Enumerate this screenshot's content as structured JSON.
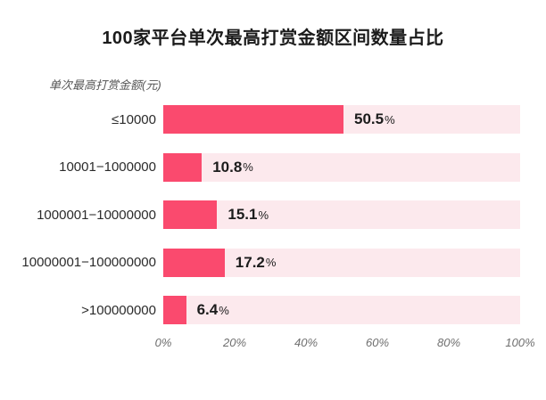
{
  "title": "100家平台单次最高打赏金额区间数量占比",
  "axis_note": "单次最高打赏金额(元)",
  "colors": {
    "bar": "#fa4a6e",
    "track": "#fce9ed",
    "title_text": "#1b1b1b",
    "category_text": "#2b2b2b",
    "axis_text": "#6f6f6f"
  },
  "chart_data": {
    "type": "bar",
    "orientation": "horizontal",
    "title": "100家平台单次最高打赏金额区间数量占比",
    "axis_unit_label": "单次最高打赏金额(元)",
    "categories": [
      "≤10000",
      "10001−1000000",
      "1000001−10000000",
      "10000001−100000000",
      ">100000000"
    ],
    "values": [
      50.5,
      10.8,
      15.1,
      17.2,
      6.4
    ],
    "value_labels": [
      "50.5%",
      "10.8%",
      "15.1%",
      "17.2%",
      "6.4%"
    ],
    "percent_sign": "%",
    "x_ticks": [
      "0%",
      "20%",
      "40%",
      "60%",
      "80%",
      "100%"
    ],
    "xlim": [
      0,
      100
    ],
    "grid": false,
    "legend": false,
    "tracks_full_width": true
  }
}
